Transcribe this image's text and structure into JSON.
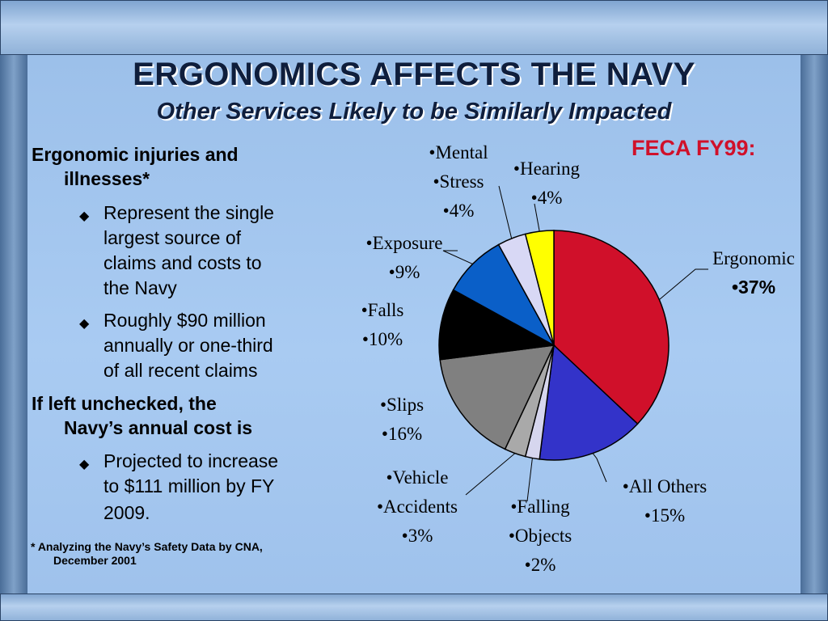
{
  "slide": {
    "title": "ERGONOMICS AFFECTS THE NAVY",
    "subtitle": "Other Services Likely to be Similarly Impacted",
    "feca_label": "FECA FY99:"
  },
  "bullets": {
    "b1_line1": "Ergonomic injuries and",
    "b1_line2": "illnesses*",
    "s1": [
      "Represent the single",
      "largest source of",
      "claims and costs to",
      "the Navy"
    ],
    "s2": [
      "Roughly $90 million",
      "annually or one-third",
      "of all recent claims"
    ],
    "b2_line1": "If left unchecked, the",
    "b2_line2": "Navy’s annual cost is",
    "s3": [
      "Projected to increase",
      "to $111 million by FY",
      "2009."
    ],
    "diamond": "◆"
  },
  "footnote": {
    "line1": "* Analyzing the Navy’s Safety Data by CNA,",
    "line2": "December 2001"
  },
  "chart_data": {
    "type": "pie",
    "title": "FECA FY99:",
    "slices": [
      {
        "label": "Ergonomic",
        "value": 37,
        "color": "#d0102a",
        "lines": [
          "Ergonomic",
          "•37%"
        ]
      },
      {
        "label": "All Others",
        "value": 15,
        "color": "#3333c9",
        "lines": [
          "•All Others",
          "•15%"
        ]
      },
      {
        "label": "Falling Objects",
        "value": 2,
        "color": "#d6d6ee",
        "lines": [
          "•Falling",
          "•Objects",
          "•2%"
        ]
      },
      {
        "label": "Vehicle Accidents",
        "value": 3,
        "color": "#a9a9a9",
        "lines": [
          "•Vehicle",
          "•Accidents",
          "•3%"
        ]
      },
      {
        "label": "Slips",
        "value": 16,
        "color": "#808080",
        "lines": [
          "•Slips",
          "•16%"
        ]
      },
      {
        "label": "Falls",
        "value": 10,
        "color": "#000000",
        "lines": [
          "•Falls",
          "•10%"
        ]
      },
      {
        "label": "Exposure",
        "value": 9,
        "color": "#0a5fc8",
        "lines": [
          "•Exposure",
          "•9%"
        ]
      },
      {
        "label": "Mental Stress",
        "value": 4,
        "color": "#d8d8f5",
        "lines": [
          "•Mental",
          "•Stress",
          "•4%"
        ]
      },
      {
        "label": "Hearing",
        "value": 4,
        "color": "#ffff00",
        "lines": [
          "•Hearing",
          "•4%"
        ]
      }
    ]
  }
}
